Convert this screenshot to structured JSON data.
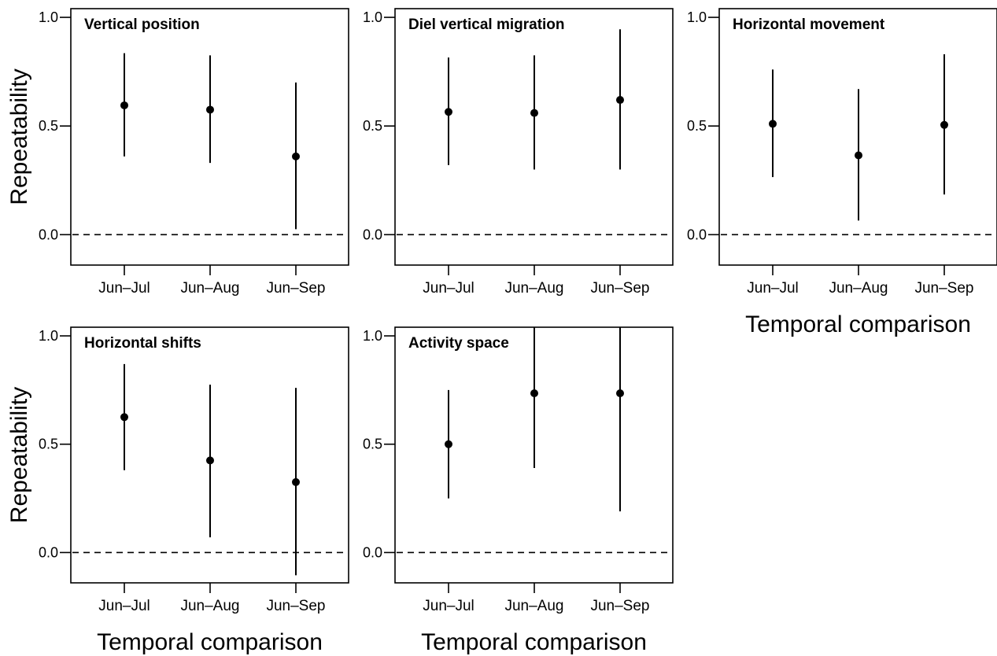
{
  "chart_data": [
    {
      "type": "errorbar",
      "title": "Vertical position",
      "categories": [
        "Jun–Jul",
        "Jun–Aug",
        "Jun–Sep"
      ],
      "estimate": [
        0.595,
        0.575,
        0.36
      ],
      "lower": [
        0.36,
        0.33,
        0.025
      ],
      "upper": [
        0.835,
        0.825,
        0.7
      ],
      "ylabel": "Repeatability",
      "xlabel": "",
      "ylim": [
        -0.14,
        1.04
      ],
      "yticks": [
        "0.0",
        "0.5",
        "1.0"
      ],
      "reference_line": 0.0
    },
    {
      "type": "errorbar",
      "title": "Diel vertical migration",
      "categories": [
        "Jun–Jul",
        "Jun–Aug",
        "Jun–Sep"
      ],
      "estimate": [
        0.565,
        0.56,
        0.62
      ],
      "lower": [
        0.32,
        0.3,
        0.3
      ],
      "upper": [
        0.815,
        0.825,
        0.945
      ],
      "ylabel": "",
      "xlabel": "",
      "ylim": [
        -0.14,
        1.04
      ],
      "yticks": [
        "0.0",
        "0.5",
        "1.0"
      ],
      "reference_line": 0.0
    },
    {
      "type": "errorbar",
      "title": "Horizontal movement",
      "categories": [
        "Jun–Jul",
        "Jun–Aug",
        "Jun–Sep"
      ],
      "estimate": [
        0.51,
        0.365,
        0.505
      ],
      "lower": [
        0.265,
        0.065,
        0.185
      ],
      "upper": [
        0.76,
        0.67,
        0.83
      ],
      "ylabel": "",
      "xlabel": "Temporal comparison",
      "ylim": [
        -0.14,
        1.04
      ],
      "yticks": [
        "0.0",
        "0.5",
        "1.0"
      ],
      "reference_line": 0.0
    },
    {
      "type": "errorbar",
      "title": "Horizontal shifts",
      "categories": [
        "Jun–Jul",
        "Jun–Aug",
        "Jun–Sep"
      ],
      "estimate": [
        0.625,
        0.425,
        0.325
      ],
      "lower": [
        0.38,
        0.07,
        -0.105
      ],
      "upper": [
        0.87,
        0.775,
        0.76
      ],
      "ylabel": "Repeatability",
      "xlabel": "Temporal comparison",
      "ylim": [
        -0.14,
        1.04
      ],
      "yticks": [
        "0.0",
        "0.5",
        "1.0"
      ],
      "reference_line": 0.0
    },
    {
      "type": "errorbar",
      "title": "Activity space",
      "categories": [
        "Jun–Jul",
        "Jun–Aug",
        "Jun–Sep"
      ],
      "estimate": [
        0.5,
        0.735,
        0.735
      ],
      "lower": [
        0.25,
        0.39,
        0.19
      ],
      "upper": [
        0.75,
        1.04,
        1.04
      ],
      "ylabel": "",
      "xlabel": "Temporal comparison",
      "ylim": [
        -0.14,
        1.04
      ],
      "yticks": [
        "0.0",
        "0.5",
        "1.0"
      ],
      "reference_line": 0.0
    }
  ]
}
